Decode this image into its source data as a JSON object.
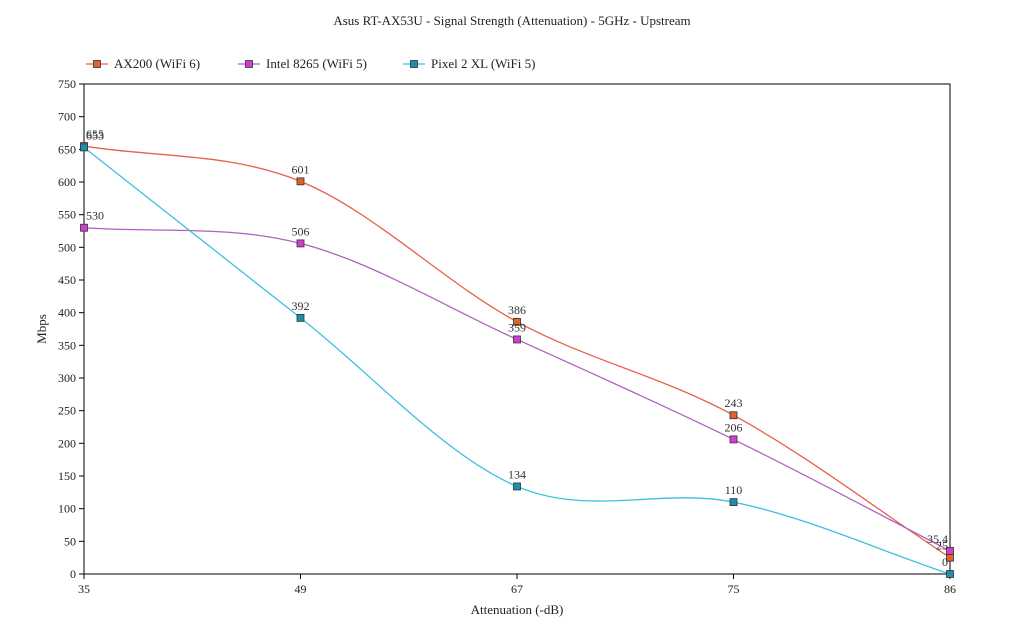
{
  "chart_data": {
    "type": "line",
    "title": "Asus RT-AX53U - Signal Strength (Attenuation) - 5GHz - Upstream",
    "xlabel": "Attenuation (-dB)",
    "ylabel": "Mbps",
    "categories": [
      "35",
      "49",
      "67",
      "75",
      "86"
    ],
    "ylim": [
      0,
      750
    ],
    "yticks": [
      0,
      50,
      100,
      150,
      200,
      250,
      300,
      350,
      400,
      450,
      500,
      550,
      600,
      650,
      700,
      750
    ],
    "grid": false,
    "legend_position": "top-left",
    "series": [
      {
        "name": "AX200 (WiFi 6)",
        "color": "#e8604a",
        "marker_color": "#e0622c",
        "values": [
          655,
          601,
          386,
          243,
          25
        ],
        "labels": [
          "655",
          "601",
          "386",
          "243",
          "25"
        ]
      },
      {
        "name": "Intel 8265 (WiFi 5)",
        "color": "#b060c0",
        "marker_color": "#d040d0",
        "values": [
          530,
          506,
          359,
          206,
          35.4
        ],
        "labels": [
          "530",
          "506",
          "359",
          "206",
          "35.4"
        ]
      },
      {
        "name": "Pixel 2 XL (WiFi 5)",
        "color": "#3cc0e0",
        "marker_color": "#1f8fb0",
        "values": [
          653,
          392,
          134,
          110,
          0
        ],
        "labels": [
          "653",
          "392",
          "134",
          "110",
          "0"
        ]
      }
    ]
  }
}
